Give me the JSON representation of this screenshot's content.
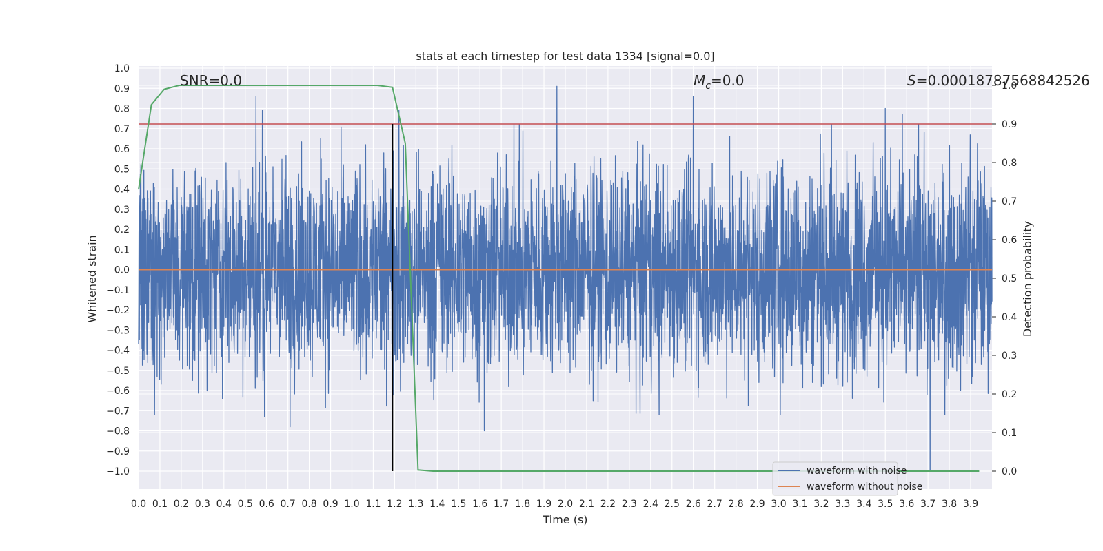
{
  "chart_data": {
    "type": "line",
    "title": "stats at each timestep for test data 1334 [signal=0.0]",
    "xlabel": "Time (s)",
    "ylabel": "Whitened strain",
    "ylabel_right": "Detection probability",
    "xlim": [
      0.0,
      4.0
    ],
    "ylim": [
      -1.1,
      1.0
    ],
    "ylim_right": [
      -0.05,
      1.0
    ],
    "x_ticks": [
      "0.0",
      "0.1",
      "0.2",
      "0.3",
      "0.4",
      "0.5",
      "0.6",
      "0.7",
      "0.8",
      "0.9",
      "1.0",
      "1.1",
      "1.2",
      "1.3",
      "1.4",
      "1.5",
      "1.6",
      "1.7",
      "1.8",
      "1.9",
      "2.0",
      "2.1",
      "2.2",
      "2.3",
      "2.4",
      "2.5",
      "2.6",
      "2.7",
      "2.8",
      "2.9",
      "3.0",
      "3.1",
      "3.2",
      "3.3",
      "3.4",
      "3.5",
      "3.6",
      "3.7",
      "3.8",
      "3.9"
    ],
    "y_ticks": [
      "1.0",
      "0.9",
      "0.8",
      "0.7",
      "0.6",
      "0.5",
      "0.4",
      "0.3",
      "0.2",
      "0.1",
      "0.0",
      "−0.1",
      "−0.2",
      "−0.3",
      "−0.4",
      "−0.5",
      "−0.6",
      "−0.7",
      "−0.8",
      "−0.9",
      "−1.0"
    ],
    "y_right_ticks": [
      "1.0",
      "0.9",
      "0.8",
      "0.7",
      "0.6",
      "0.5",
      "0.4",
      "0.3",
      "0.2",
      "0.1",
      "0.0"
    ],
    "grid": true,
    "legend_placement": "lower-right",
    "annotations": {
      "snr": "SNR=0.0",
      "mc_symbol": "M",
      "mc_sub": "c",
      "mc_value": "=0.0",
      "s_symbol": "S",
      "s_value": "=0.00018787568842526"
    },
    "series": [
      {
        "name": "waveform with noise",
        "color": "#4c72b0",
        "axis": "left",
        "x_range": [
          0.0,
          4.0
        ],
        "noise_envelope_typical": 0.35,
        "peaks": [
          {
            "x": 0.55,
            "y": 0.86
          },
          {
            "x": 0.58,
            "y": 0.79
          },
          {
            "x": 0.59,
            "y": -0.73
          },
          {
            "x": 0.71,
            "y": -0.78
          },
          {
            "x": 1.22,
            "y": 0.79
          },
          {
            "x": 1.62,
            "y": -0.8
          },
          {
            "x": 1.96,
            "y": 0.91
          },
          {
            "x": 2.44,
            "y": -0.72
          },
          {
            "x": 2.6,
            "y": 0.86
          },
          {
            "x": 3.5,
            "y": 0.8
          },
          {
            "x": 3.58,
            "y": 0.77
          },
          {
            "x": 3.71,
            "y": -1.0
          }
        ]
      },
      {
        "name": "waveform without noise",
        "color": "#dd8452",
        "axis": "left",
        "x": [
          0.0,
          4.0
        ],
        "y": [
          0.0,
          0.0
        ]
      },
      {
        "name": "detection probability",
        "color": "#55a868",
        "axis": "right",
        "x": [
          0.0,
          0.06,
          0.12,
          0.19,
          0.5,
          1.0,
          1.12,
          1.19,
          1.25,
          1.31,
          1.38,
          2.0,
          3.0,
          3.94
        ],
        "y": [
          0.73,
          0.95,
          0.99,
          1.0,
          1.0,
          1.0,
          1.0,
          0.995,
          0.85,
          0.003,
          0.0,
          0.0,
          0.0,
          0.0
        ]
      }
    ],
    "threshold_right": {
      "y": 0.9,
      "color": "#c44e52"
    },
    "vertical_marker": {
      "x": 1.19,
      "y_bottom": -1.0,
      "y_top": 0.9,
      "color": "#000000"
    }
  }
}
